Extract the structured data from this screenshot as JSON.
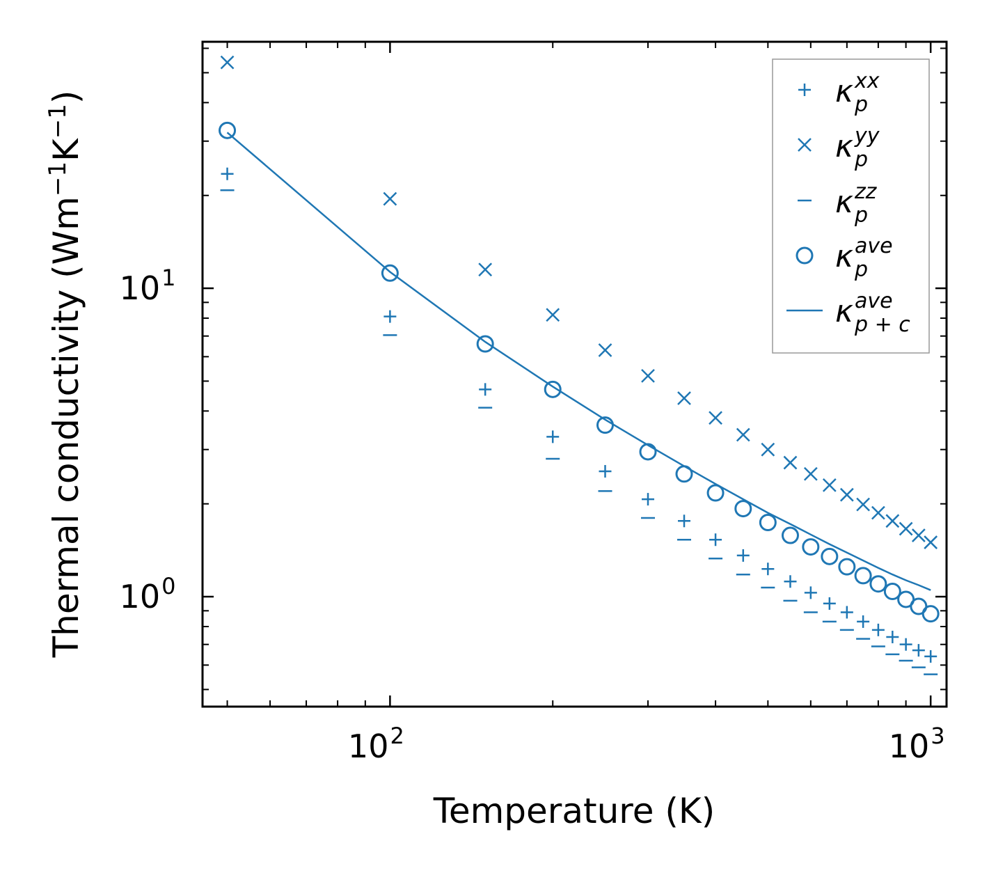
{
  "chart_data": {
    "type": "scatter",
    "xscale": "log",
    "yscale": "log",
    "xlabel": "Temperature (K)",
    "ylabel_base": "Thermal conductivity (Wm",
    "ylabel_exp1": "−1",
    "ylabel_mid": "K",
    "ylabel_exp2": "−1",
    "ylabel_end": ")",
    "xlim": [
      45,
      1070
    ],
    "ylim": [
      0.44,
      63
    ],
    "x_ticks": [
      {
        "base": "10",
        "exp": "2",
        "value": 100
      },
      {
        "base": "10",
        "exp": "3",
        "value": 1000
      }
    ],
    "y_ticks": [
      {
        "base": "10",
        "exp": "0",
        "value": 1
      },
      {
        "base": "10",
        "exp": "1",
        "value": 10
      }
    ],
    "x": [
      50,
      100,
      150,
      200,
      250,
      300,
      350,
      400,
      450,
      500,
      550,
      600,
      650,
      700,
      750,
      800,
      850,
      900,
      950,
      1000
    ],
    "series": [
      {
        "name": "kappa_p_xx",
        "legend_base": "κ",
        "legend_sup": "xx",
        "legend_sub": "p",
        "marker": "plus",
        "values": [
          23.5,
          8.1,
          4.7,
          3.3,
          2.55,
          2.07,
          1.76,
          1.53,
          1.36,
          1.23,
          1.12,
          1.03,
          0.95,
          0.89,
          0.83,
          0.78,
          0.74,
          0.7,
          0.67,
          0.64
        ]
      },
      {
        "name": "kappa_p_yy",
        "legend_base": "κ",
        "legend_sup": "yy",
        "legend_sub": "p",
        "marker": "x",
        "values": [
          54,
          19.5,
          11.5,
          8.2,
          6.3,
          5.2,
          4.4,
          3.8,
          3.35,
          3.0,
          2.72,
          2.5,
          2.3,
          2.14,
          1.99,
          1.87,
          1.76,
          1.66,
          1.58,
          1.5
        ]
      },
      {
        "name": "kappa_p_zz",
        "legend_base": "κ",
        "legend_sup": "zz",
        "legend_sub": "p",
        "marker": "hline",
        "values": [
          20.8,
          7.05,
          4.1,
          2.8,
          2.2,
          1.8,
          1.53,
          1.33,
          1.18,
          1.07,
          0.97,
          0.89,
          0.83,
          0.78,
          0.73,
          0.69,
          0.65,
          0.62,
          0.59,
          0.56
        ]
      },
      {
        "name": "kappa_p_ave",
        "legend_base": "κ",
        "legend_sup": "ave",
        "legend_sub": "p",
        "marker": "circle",
        "values": [
          32.5,
          11.2,
          6.6,
          4.7,
          3.6,
          2.95,
          2.5,
          2.17,
          1.93,
          1.74,
          1.58,
          1.45,
          1.35,
          1.25,
          1.17,
          1.1,
          1.04,
          0.98,
          0.93,
          0.88
        ]
      },
      {
        "name": "kappa_p_plus_c_ave",
        "legend_base": "κ",
        "legend_sup": "ave",
        "legend_sub": "p + c",
        "marker": "line",
        "values": [
          32.0,
          11.3,
          6.7,
          4.8,
          3.75,
          3.1,
          2.65,
          2.32,
          2.07,
          1.87,
          1.72,
          1.59,
          1.48,
          1.39,
          1.31,
          1.24,
          1.18,
          1.13,
          1.09,
          1.05
        ]
      }
    ],
    "legend_position": "top-right",
    "color": "#1f77b4",
    "grid": false
  }
}
